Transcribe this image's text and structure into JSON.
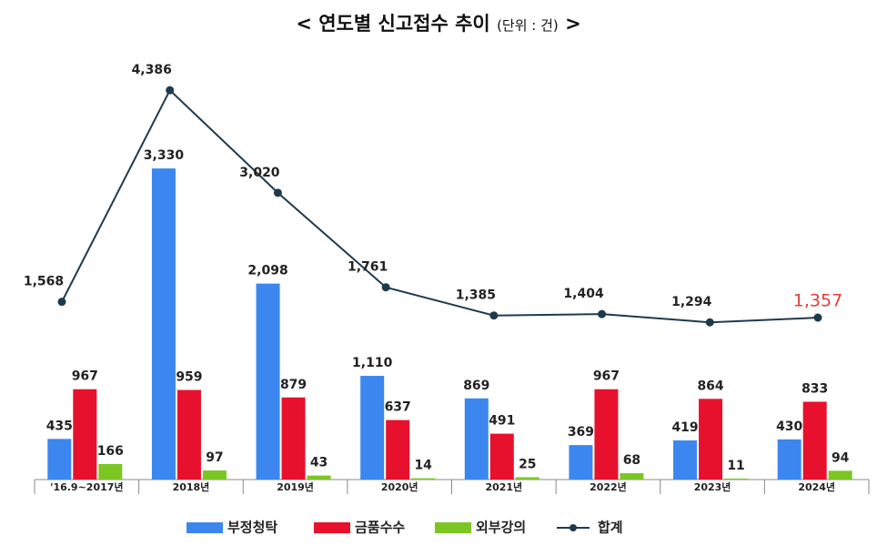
{
  "chart_data": {
    "type": "bar_line",
    "title_open": "<",
    "title": "연도별 신고접수 추이",
    "unit": "(단위 : 건)",
    "title_close": ">",
    "categories": [
      "'16.9~2017년",
      "2018년",
      "2019년",
      "2020년",
      "2021년",
      "2022년",
      "2023년",
      "2024년"
    ],
    "series": [
      {
        "name": "부정청탁",
        "color": "#3b87ef",
        "values": [
          435,
          3330,
          2098,
          1110,
          869,
          369,
          419,
          430
        ],
        "value_labels": [
          "435",
          "3,330",
          "2,098",
          "1,110",
          "869",
          "369",
          "419",
          "430"
        ]
      },
      {
        "name": "금품수수",
        "color": "#e8112d",
        "values": [
          967,
          959,
          879,
          637,
          491,
          967,
          864,
          833
        ]
      },
      {
        "name": "외부강의",
        "color": "#7cc623",
        "values": [
          166,
          97,
          43,
          14,
          25,
          68,
          11,
          94
        ]
      },
      {
        "name": "합계",
        "type": "line",
        "axis": "y2",
        "color": "#1f3a4c",
        "values": [
          1568,
          4386,
          3020,
          1761,
          1385,
          1404,
          1294,
          1357
        ],
        "value_labels": [
          "1,568",
          "4,386",
          "3,020",
          "1,761",
          "1,385",
          "1,404",
          "1,294",
          "1,357"
        ]
      }
    ],
    "highlight": {
      "index": 7,
      "color": "#e0403a"
    },
    "ylim": [
      0,
      4500
    ],
    "y2lim": [
      -800,
      4800
    ],
    "legend": "bottom"
  }
}
